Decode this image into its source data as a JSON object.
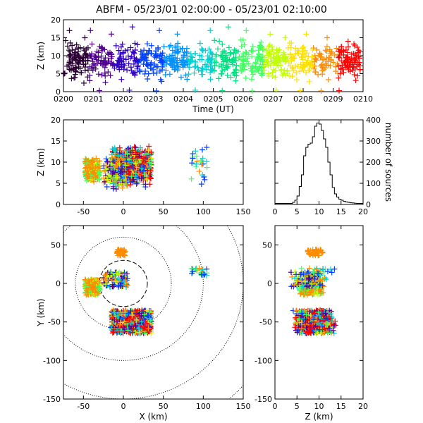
{
  "chart_data": {
    "type": "scatter",
    "title": "ABFM - 05/23/01 02:00:00 - 05/23/01 02:10:00",
    "panels": {
      "time_height": {
        "xlabel": "Time (UT)",
        "ylabel": "Z (km)",
        "xlim": [
          0,
          10
        ],
        "ylim": [
          0,
          20
        ],
        "xticks": [
          "0200",
          "0201",
          "0202",
          "0203",
          "0204",
          "0205",
          "0206",
          "0207",
          "0208",
          "0209",
          "0210"
        ],
        "yticks": [
          0,
          5,
          10,
          15,
          20
        ],
        "band_center_z": 8.5,
        "band_halfwidth_z": 3.5,
        "outliers": [
          [
            0.2,
            17
          ],
          [
            0.9,
            17
          ],
          [
            1.6,
            16
          ],
          [
            2.3,
            18
          ],
          [
            3.2,
            17
          ],
          [
            3.8,
            16
          ],
          [
            4.9,
            17
          ],
          [
            5.5,
            18
          ],
          [
            6.1,
            17
          ],
          [
            6.9,
            16
          ],
          [
            7.4,
            15
          ],
          [
            8.1,
            16
          ],
          [
            8.8,
            15
          ],
          [
            9.5,
            14
          ],
          [
            1.2,
            0.3
          ],
          [
            2.2,
            0.4
          ],
          [
            3.1,
            0.2
          ],
          [
            4.4,
            0.4
          ],
          [
            5.3,
            0.3
          ],
          [
            6.3,
            0.2
          ],
          [
            7.1,
            0.4
          ],
          [
            7.9,
            0.3
          ],
          [
            8.6,
            0.2
          ],
          [
            9.2,
            0.3
          ]
        ]
      },
      "xz": {
        "xlabel": "",
        "ylabel": "Z (km)",
        "xlim": [
          -75,
          150
        ],
        "ylim": [
          0,
          20
        ],
        "xticks": [
          -50,
          0,
          50,
          100,
          150
        ],
        "yticks": [
          0,
          5,
          10,
          15,
          20
        ]
      },
      "histogram": {
        "xlabel": "",
        "ylabel": "number of sources",
        "xlim": [
          0,
          20
        ],
        "ylim": [
          0,
          400
        ],
        "xticks": [
          0,
          5,
          10,
          15,
          20
        ],
        "yticks": [
          0,
          100,
          200,
          300,
          400
        ],
        "bin_width_km": 0.5,
        "counts": [
          5,
          5,
          5,
          5,
          5,
          5,
          5,
          5,
          10,
          20,
          40,
          85,
          140,
          230,
          270,
          285,
          290,
          320,
          370,
          385,
          380,
          350,
          310,
          270,
          200,
          140,
          80,
          50,
          35,
          25,
          20,
          15,
          12,
          10,
          8,
          7,
          6,
          5,
          5,
          5
        ]
      },
      "plan": {
        "xlabel": "X (km)",
        "ylabel": "Y (km)",
        "xlim": [
          -75,
          150
        ],
        "ylim": [
          -150,
          75
        ],
        "xticks": [
          -50,
          0,
          50,
          100,
          150
        ],
        "yticks": [
          -150,
          -100,
          -50,
          0,
          50
        ],
        "range_rings_km": [
          30,
          60,
          100,
          150,
          200
        ],
        "ring_center": [
          0,
          0
        ]
      },
      "yz": {
        "xlabel": "Z (km)",
        "ylabel": "",
        "xlim": [
          0,
          20
        ],
        "ylim": [
          -150,
          75
        ],
        "xticks": [
          0,
          5,
          10,
          15,
          20
        ],
        "yticks": [
          -150,
          -100,
          -50,
          0,
          50
        ]
      }
    },
    "clusters": [
      {
        "name": "cluster-a",
        "x": [
          -48,
          -30
        ],
        "y": [
          -15,
          5
        ],
        "z": [
          5,
          11
        ],
        "colors": [
          "#c0ff00",
          "#ff8c00",
          "#ff8c00",
          "#40ff60"
        ],
        "count": 220
      },
      {
        "name": "cluster-b",
        "x": [
          -15,
          35
        ],
        "y": [
          -65,
          -35
        ],
        "z": [
          4,
          14
        ],
        "colors": [
          "#ff0000",
          "#ff0000",
          "#ff0000",
          "#ff8c00",
          "#ffe000",
          "#40ff60",
          "#00d0d0",
          "#0040ff",
          "#500090"
        ],
        "count": 700
      },
      {
        "name": "cluster-c",
        "x": [
          -8,
          2
        ],
        "y": [
          36,
          44
        ],
        "z": [
          7,
          11
        ],
        "colors": [
          "#ff8c00"
        ],
        "count": 50
      },
      {
        "name": "cluster-d",
        "x": [
          -25,
          5
        ],
        "y": [
          -5,
          15
        ],
        "z": [
          3,
          12
        ],
        "colors": [
          "#ff8c00",
          "#00d0d0",
          "#0040ff",
          "#500090",
          "#c0ff00"
        ],
        "count": 120
      },
      {
        "name": "cluster-e",
        "x": [
          85,
          105
        ],
        "y": [
          10,
          20
        ],
        "z": [
          4,
          14
        ],
        "colors": [
          "#0040ff",
          "#00d0d0",
          "#ff8c00",
          "#40ff60"
        ],
        "count": 25
      }
    ]
  }
}
